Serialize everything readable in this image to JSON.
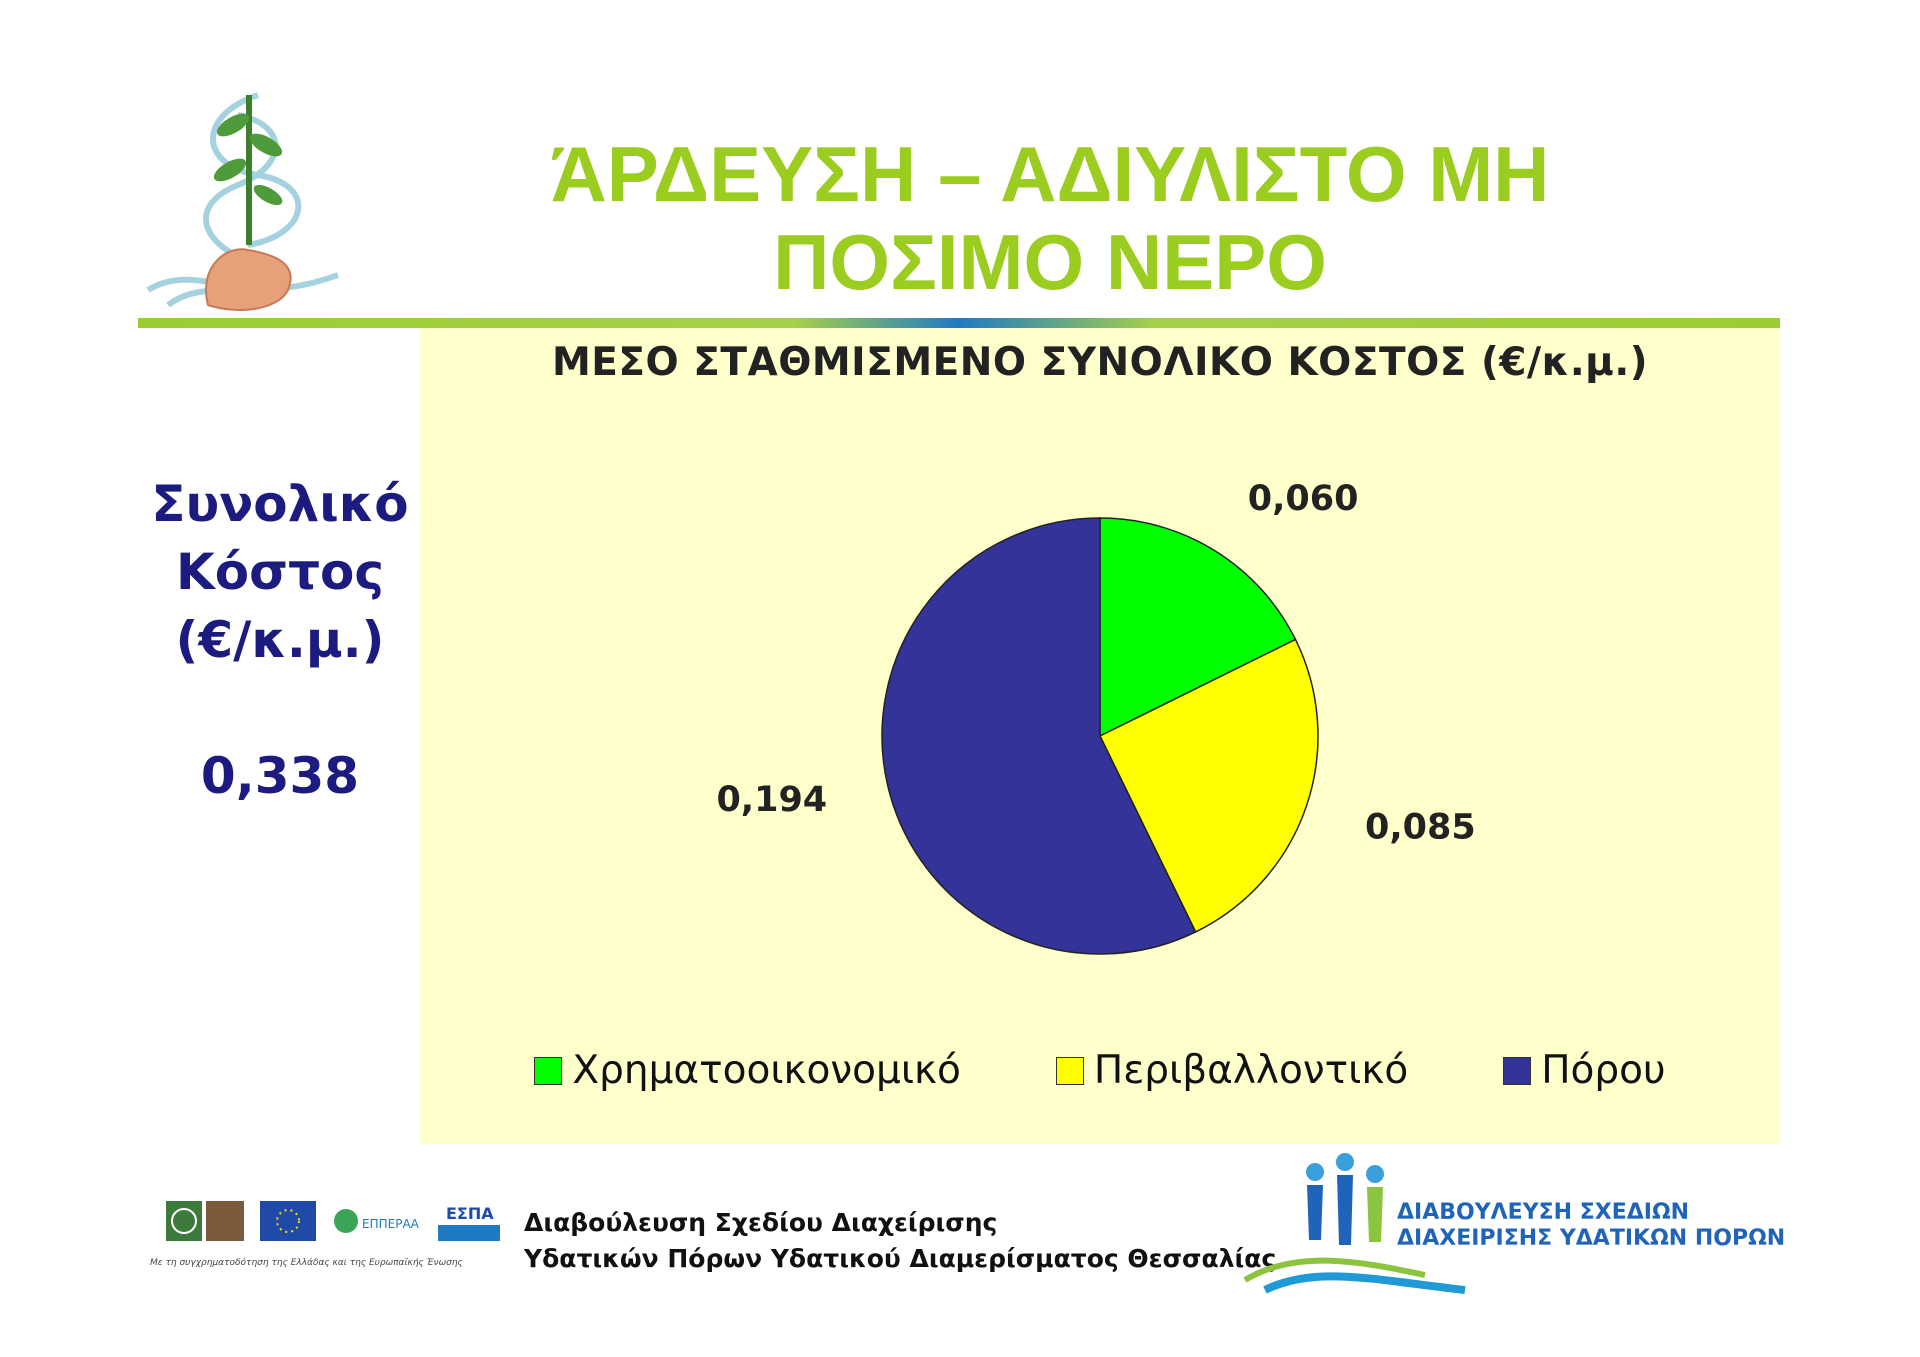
{
  "slide": {
    "title_line1": "ΆΡΔΕΥΣΗ – ΑΔΙΥΛΙΣΤΟ ΜΗ",
    "title_line2": "ΠΟΣΙΜΟ ΝΕΡΟ"
  },
  "side_summary": {
    "line1": "Συνολικό",
    "line2": "Κόστος",
    "line3": "(€/κ.μ.)",
    "total": "0,338"
  },
  "chart_data": {
    "type": "pie",
    "title": "ΜΕΣΟ ΣΤΑΘΜΙΣΜΕΝΟ ΣΥΝΟΛΙΚΟ ΚΟΣΤΟΣ (€/κ.μ.)",
    "legend_position": "bottom",
    "categories": [
      "Χρηματοοικονομικό",
      "Περιβαλλοντικό",
      "Πόρου"
    ],
    "values": [
      0.06,
      0.085,
      0.194
    ],
    "labels": [
      "0,060",
      "0,085",
      "0,194"
    ],
    "colors": [
      "#00ff00",
      "#ffff00",
      "#333399"
    ]
  },
  "footer": {
    "line1": "Διαβούλευση Σχεδίου Διαχείρισης",
    "line2": "Υδατικών Πόρων Υδατικού Διαμερίσματος Θεσσαλίας",
    "cofund_note": "Με τη συγχρηματοδότηση της Ελλάδας και της Ευρωπαϊκής Ένωσης",
    "epperaa_label": "ΕΠΠΕΡΑΑ",
    "espa_label": "ΕΣΠΑ"
  },
  "consultation_logo": {
    "line1": "ΔΙΑΒΟΥΛΕΥΣΗ ΣΧΕΔΙΩΝ",
    "line2": "ΔΙΑΧΕΙΡΙΣΗΣ ΥΔΑΤΙΚΩΝ ΠΟΡΩΝ"
  }
}
